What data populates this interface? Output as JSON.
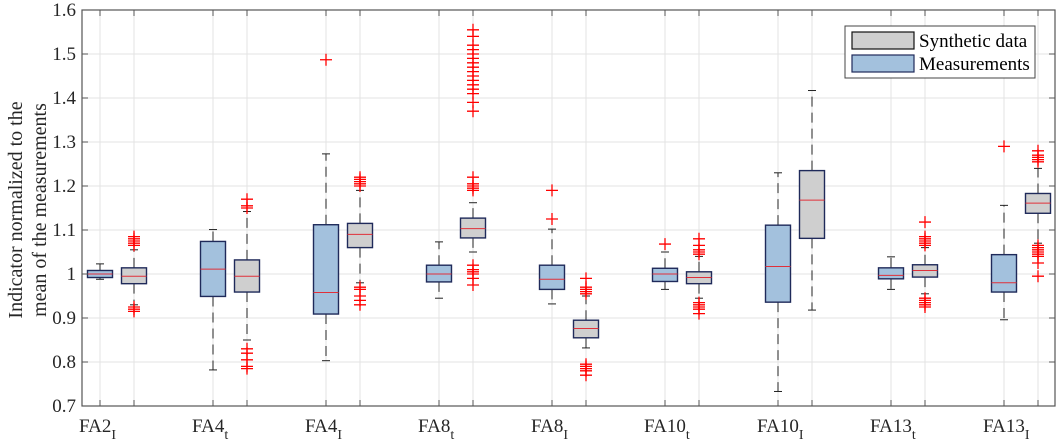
{
  "chart_data": {
    "type": "box",
    "title": "",
    "ylabel_lines": [
      "Indicator normalized to the",
      "mean of the measurements"
    ],
    "ylim": [
      0.7,
      1.6
    ],
    "yticks": [
      "0.7",
      "0.8",
      "0.9",
      "1",
      "1.1",
      "1.2",
      "1.3",
      "1.4",
      "1.5",
      "1.6"
    ],
    "grid": true,
    "legend_placement": "top-right",
    "legend": [
      {
        "name": "Synthetic data",
        "series": "synthetic"
      },
      {
        "name": "Measurements",
        "series": "measurements"
      }
    ],
    "colors": {
      "measurements": "#a3c1dd",
      "synthetic": "#cfcfcf",
      "box_edge": "#1f2a5a",
      "median": "#e0303a",
      "outlier": "#ff0000"
    },
    "categories": [
      {
        "base": "FA2",
        "sub": "I"
      },
      {
        "base": "FA4",
        "sub": "t"
      },
      {
        "base": "FA4",
        "sub": "I"
      },
      {
        "base": "FA8",
        "sub": "t"
      },
      {
        "base": "FA8",
        "sub": "I"
      },
      {
        "base": "FA10",
        "sub": "t"
      },
      {
        "base": "FA10",
        "sub": "I"
      },
      {
        "base": "FA13",
        "sub": "t"
      },
      {
        "base": "FA13",
        "sub": "I"
      }
    ],
    "boxes": [
      {
        "measurements": {
          "whislo": 0.988,
          "q1": 0.992,
          "med": 1.0,
          "q3": 1.008,
          "whishi": 1.023,
          "fliers": []
        },
        "synthetic": {
          "whislo": 0.93,
          "q1": 0.978,
          "med": 0.995,
          "q3": 1.014,
          "whishi": 1.055,
          "fliers": [
            1.065,
            1.07,
            1.075,
            1.08,
            1.085,
            0.915,
            0.92,
            0.925
          ]
        }
      },
      {
        "measurements": {
          "whislo": 0.782,
          "q1": 0.949,
          "med": 1.011,
          "q3": 1.074,
          "whishi": 1.101,
          "fliers": []
        },
        "synthetic": {
          "whislo": 0.85,
          "q1": 0.959,
          "med": 0.995,
          "q3": 1.032,
          "whishi": 1.142,
          "fliers": [
            1.15,
            1.155,
            1.17,
            0.83,
            0.82,
            0.805,
            0.79,
            0.785
          ]
        }
      },
      {
        "measurements": {
          "whislo": 0.803,
          "q1": 0.909,
          "med": 0.958,
          "q3": 1.112,
          "whishi": 1.273,
          "fliers": [
            1.487
          ]
        },
        "synthetic": {
          "whislo": 0.98,
          "q1": 1.06,
          "med": 1.09,
          "q3": 1.115,
          "whishi": 1.19,
          "fliers": [
            1.2,
            1.205,
            1.21,
            1.215,
            1.22,
            0.97,
            0.965,
            0.95,
            0.94,
            0.93
          ]
        }
      },
      {
        "measurements": {
          "whislo": 0.945,
          "q1": 0.982,
          "med": 1.0,
          "q3": 1.02,
          "whishi": 1.073,
          "fliers": []
        },
        "synthetic": {
          "whislo": 1.05,
          "q1": 1.082,
          "med": 1.103,
          "q3": 1.127,
          "whishi": 1.162,
          "fliers": [
            1.19,
            1.195,
            1.2,
            1.205,
            1.22,
            1.02,
            1.01,
            1.005,
            1.0,
            0.99,
            0.975,
            1.37,
            1.39,
            1.41,
            1.42,
            1.43,
            1.44,
            1.45,
            1.46,
            1.47,
            1.48,
            1.49,
            1.5,
            1.51,
            1.52,
            1.54,
            1.555
          ]
        }
      },
      {
        "measurements": {
          "whislo": 0.932,
          "q1": 0.965,
          "med": 0.988,
          "q3": 1.02,
          "whishi": 1.102,
          "fliers": [
            1.125,
            1.19
          ]
        },
        "synthetic": {
          "whislo": 0.832,
          "q1": 0.855,
          "med": 0.876,
          "q3": 0.895,
          "whishi": 0.95,
          "fliers": [
            0.955,
            0.96,
            0.965,
            0.97,
            0.99,
            0.795,
            0.79,
            0.785,
            0.78,
            0.77
          ]
        }
      },
      {
        "measurements": {
          "whislo": 0.965,
          "q1": 0.983,
          "med": 1.0,
          "q3": 1.013,
          "whishi": 1.05,
          "fliers": [
            1.068
          ]
        },
        "synthetic": {
          "whislo": 0.945,
          "q1": 0.978,
          "med": 0.992,
          "q3": 1.005,
          "whishi": 1.04,
          "fliers": [
            1.045,
            1.05,
            1.055,
            1.065,
            1.08,
            0.935,
            0.93,
            0.925,
            0.92,
            0.91
          ]
        }
      },
      {
        "measurements": {
          "whislo": 0.733,
          "q1": 0.936,
          "med": 1.017,
          "q3": 1.111,
          "whishi": 1.23,
          "fliers": []
        },
        "synthetic": {
          "whislo": 0.918,
          "q1": 1.081,
          "med": 1.168,
          "q3": 1.235,
          "whishi": 1.417,
          "fliers": []
        }
      },
      {
        "measurements": {
          "whislo": 0.965,
          "q1": 0.989,
          "med": 0.997,
          "q3": 1.014,
          "whishi": 1.039,
          "fliers": []
        },
        "synthetic": {
          "whislo": 0.955,
          "q1": 0.993,
          "med": 1.008,
          "q3": 1.021,
          "whishi": 1.06,
          "fliers": [
            1.065,
            1.07,
            1.075,
            1.08,
            1.085,
            1.118,
            0.945,
            0.94,
            0.935,
            0.93,
            0.925
          ]
        }
      },
      {
        "measurements": {
          "whislo": 0.896,
          "q1": 0.959,
          "med": 0.98,
          "q3": 1.044,
          "whishi": 1.156,
          "fliers": [
            1.29
          ]
        },
        "synthetic": {
          "whislo": 1.07,
          "q1": 1.138,
          "med": 1.161,
          "q3": 1.183,
          "whishi": 1.24,
          "fliers": [
            1.255,
            1.26,
            1.265,
            1.27,
            1.28,
            1.065,
            1.06,
            1.055,
            1.05,
            1.045,
            1.04,
            1.025,
            0.995
          ]
        }
      }
    ]
  }
}
